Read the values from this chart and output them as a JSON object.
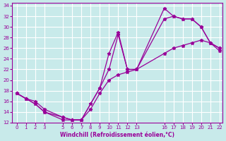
{
  "xlabel": "Windchill (Refroidissement éolien,°C)",
  "line_color": "#990099",
  "bg_color": "#c8eaea",
  "grid_color": "#ffffff",
  "xlim": [
    -0.5,
    22.3
  ],
  "ylim": [
    12,
    34.5
  ],
  "xticks": [
    0,
    1,
    2,
    3,
    5,
    6,
    7,
    8,
    9,
    10,
    11,
    12,
    13,
    16,
    17,
    18,
    19,
    20,
    21,
    22
  ],
  "yticks": [
    12,
    14,
    16,
    18,
    20,
    22,
    24,
    26,
    28,
    30,
    32,
    34
  ],
  "line1_x": [
    0,
    1,
    2,
    3,
    5,
    6,
    7,
    9,
    10,
    11,
    12,
    13,
    16,
    17,
    18,
    19,
    20,
    21,
    22
  ],
  "line1_y": [
    17.5,
    16.5,
    15.5,
    14.0,
    12.5,
    12.5,
    12.5,
    18.5,
    25.0,
    29.0,
    22.0,
    22.0,
    33.5,
    32.0,
    31.5,
    31.5,
    30.0,
    27.0,
    25.5
  ],
  "line2_x": [
    0,
    1,
    2,
    3,
    5,
    6,
    7,
    8,
    9,
    10,
    11,
    12,
    13,
    16,
    17,
    18,
    19,
    20,
    21,
    22
  ],
  "line2_y": [
    17.5,
    16.5,
    16.0,
    14.5,
    13.0,
    12.5,
    12.5,
    15.5,
    18.5,
    22.0,
    28.5,
    22.0,
    22.0,
    31.5,
    32.0,
    31.5,
    31.5,
    30.0,
    27.0,
    26.0
  ],
  "line3_x": [
    0,
    1,
    2,
    3,
    5,
    6,
    7,
    8,
    9,
    10,
    11,
    12,
    13,
    16,
    17,
    18,
    19,
    20,
    21,
    22
  ],
  "line3_y": [
    17.5,
    16.5,
    15.5,
    14.0,
    13.0,
    12.5,
    12.5,
    14.5,
    17.5,
    20.0,
    21.0,
    21.5,
    22.0,
    25.0,
    26.0,
    26.5,
    27.0,
    27.5,
    27.0,
    26.0
  ]
}
